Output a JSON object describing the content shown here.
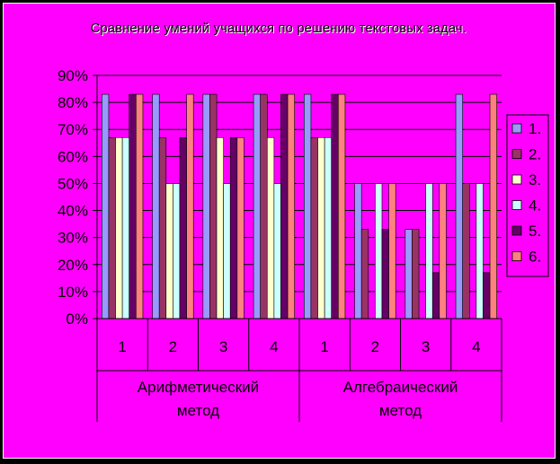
{
  "chart_data": {
    "type": "bar",
    "title": "Сравнение умений учащихся по решению текстовых задач.",
    "ylabel": "",
    "ylim": [
      0,
      90
    ],
    "yticks": [
      "0%",
      "10%",
      "20%",
      "30%",
      "40%",
      "50%",
      "60%",
      "70%",
      "80%",
      "90%"
    ],
    "categories": [
      "1",
      "2",
      "3",
      "4",
      "1",
      "2",
      "3",
      "4"
    ],
    "groups": [
      {
        "label": "Арифметический метод",
        "count": 4
      },
      {
        "label": "Алгебраический метод",
        "count": 4
      }
    ],
    "legend_position": "right",
    "series": [
      {
        "name": "1.",
        "color": "#9999ff",
        "values": [
          83,
          83,
          83,
          83,
          83,
          50,
          33,
          83
        ]
      },
      {
        "name": "2.",
        "color": "#993366",
        "values": [
          67,
          67,
          83,
          83,
          67,
          33,
          33,
          50
        ]
      },
      {
        "name": "3.",
        "color": "#ffffcc",
        "values": [
          67,
          50,
          67,
          67,
          67,
          0,
          0,
          0
        ]
      },
      {
        "name": "4.",
        "color": "#ccffff",
        "values": [
          67,
          50,
          50,
          50,
          67,
          50,
          50,
          50
        ]
      },
      {
        "name": "5.",
        "color": "#660066",
        "values": [
          83,
          67,
          67,
          83,
          83,
          33,
          17,
          17
        ]
      },
      {
        "name": "6.",
        "color": "#ff8080",
        "values": [
          83,
          83,
          67,
          83,
          83,
          50,
          50,
          83
        ]
      }
    ]
  }
}
